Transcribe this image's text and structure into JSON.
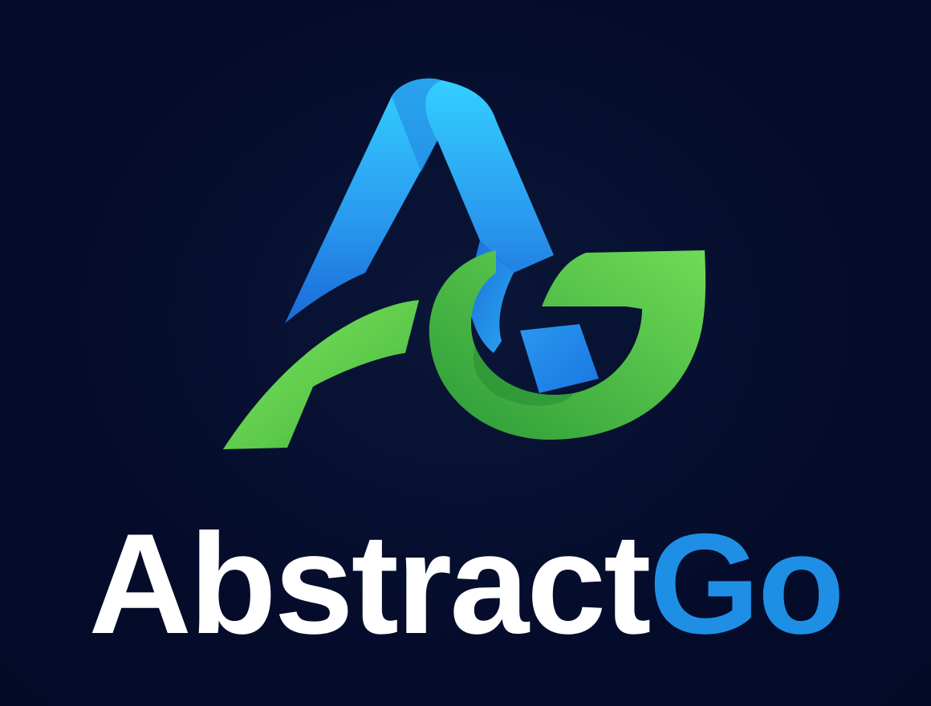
{
  "brand": {
    "name_part_1": "Abstract",
    "name_part_2": "Go",
    "logo_icon": "ag-monogram-icon"
  },
  "colors": {
    "background": "#050c2b",
    "wordmark_primary": "#ffffff",
    "wordmark_accent": "#1f8fe6",
    "ribbon_blue_light": "#2ec6fb",
    "ribbon_blue_dark": "#1a6fdc",
    "ribbon_green_light": "#6fdd5a",
    "ribbon_green_dark": "#2fa83a"
  }
}
